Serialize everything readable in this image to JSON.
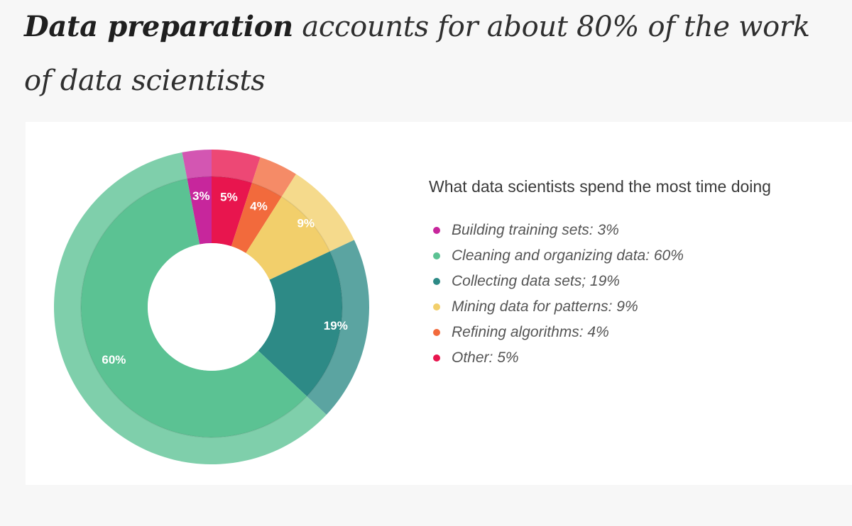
{
  "headline": {
    "bold_part": "Data preparation",
    "rest": " accounts for about 80% of the work of data scientists"
  },
  "chart_data": {
    "type": "pie",
    "title": "What data scientists spend the most time doing",
    "slices": [
      {
        "label": "Building training sets",
        "legend_text": "Building training sets: 3%",
        "value": 3,
        "value_label": "3%",
        "color": "#c7269c",
        "label_color": "#ffffff"
      },
      {
        "label": "Other",
        "legend_text": "Other: 5%",
        "value": 5,
        "value_label": "5%",
        "color": "#e8154e",
        "label_color": "#ffffff"
      },
      {
        "label": "Refining algorithms",
        "legend_text": "Refining algorithms: 4%",
        "value": 4,
        "value_label": "4%",
        "color": "#f26a3c",
        "label_color": "#ffffff"
      },
      {
        "label": "Mining data for patterns",
        "legend_text": "Mining data for patterns: 9%",
        "value": 9,
        "value_label": "9%",
        "color": "#f2cf6b",
        "label_color": "#ffffff"
      },
      {
        "label": "Collecting data sets",
        "legend_text": "Collecting data sets; 19%",
        "value": 19,
        "value_label": "19%",
        "color": "#2d8a86",
        "label_color": "#ffffff"
      },
      {
        "label": "Cleaning and organizing data",
        "legend_text": "Cleaning and organizing data: 60%",
        "value": 60,
        "value_label": "60%",
        "color": "#5bc293",
        "label_color": "#ffffff"
      }
    ],
    "legend_order": [
      "Building training sets",
      "Cleaning and organizing data",
      "Collecting data sets",
      "Mining data for patterns",
      "Refining algorithms",
      "Other"
    ]
  }
}
